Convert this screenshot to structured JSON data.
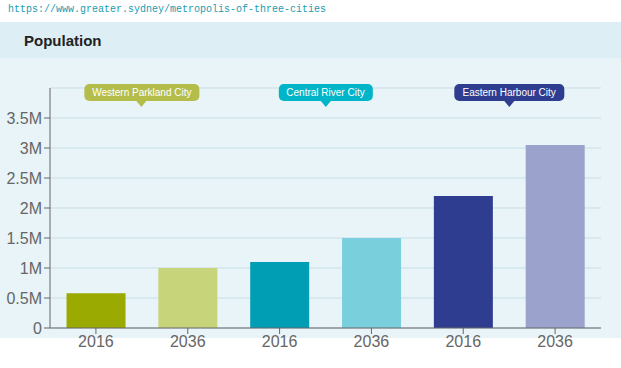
{
  "chart_data": {
    "type": "bar",
    "title": "Population",
    "subtitle": "https://www.greater.sydney/metropolis-of-three-cities",
    "categories": [
      "2016",
      "2036",
      "2016",
      "2036",
      "2016",
      "2036"
    ],
    "values": [
      0.58,
      1.0,
      1.1,
      1.5,
      2.2,
      3.05
    ],
    "colors": [
      "#9aaa00",
      "#c8d47a",
      "#009eb5",
      "#7acfdc",
      "#2e3d8f",
      "#9ba3cc"
    ],
    "ylim": [
      0,
      4.0
    ],
    "yticks": [
      0,
      {
        "value": 0.5,
        "label": "0.5M"
      },
      {
        "value": 1.0,
        "label": "1M"
      },
      {
        "value": 1.5,
        "label": "1.5M"
      },
      {
        "value": 2.0,
        "label": "2M"
      },
      {
        "value": 2.5,
        "label": "2.5M"
      },
      {
        "value": 3.0,
        "label": "3M"
      },
      {
        "value": 3.5,
        "label": "3.5M"
      }
    ],
    "grid": true,
    "annotations": [
      {
        "text": "Western Parkland City",
        "color": "#b5bd4a"
      },
      {
        "text": "Central River City",
        "color": "#00b5c8"
      },
      {
        "text": "Eastern Harbour City",
        "color": "#2e3d8f"
      }
    ]
  }
}
